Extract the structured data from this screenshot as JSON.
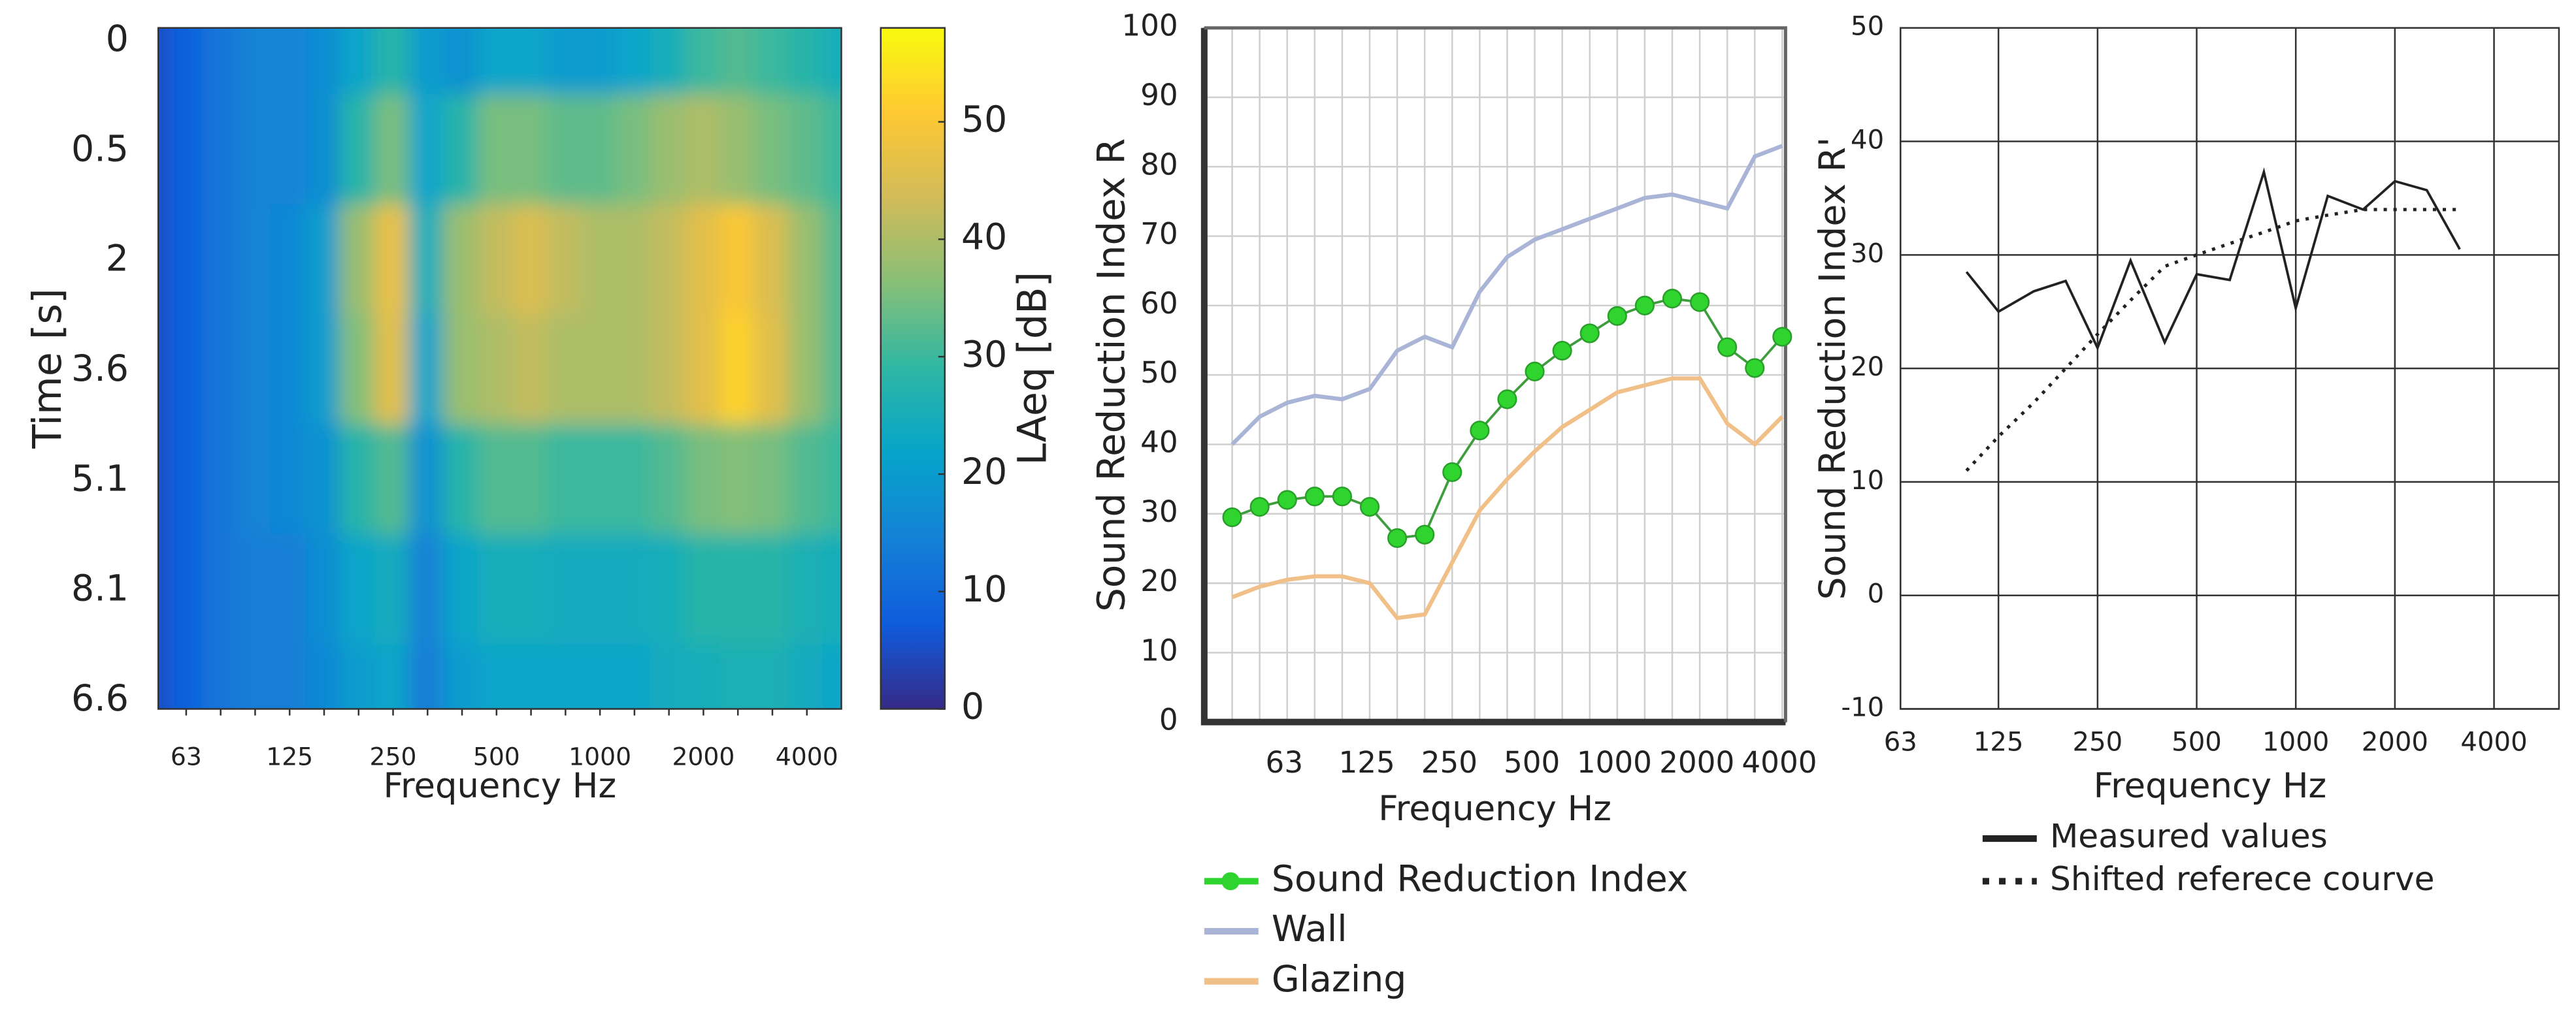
{
  "chart_data": [
    {
      "type": "heatmap",
      "xlabel": "Frequency Hz",
      "ylabel": "Time [s]",
      "colorbar_label": "LAeq [dB]",
      "categories": [
        null,
        "63",
        null,
        null,
        "125",
        null,
        null,
        "250",
        null,
        null,
        "500",
        null,
        null,
        "1000",
        null,
        null,
        "2000",
        null,
        null,
        "4000",
        null
      ],
      "rows": [
        "0",
        "0.5",
        "2",
        "3.6",
        "5.1",
        "8.1",
        "6.6"
      ],
      "values": [
        [
          5,
          8,
          12,
          15,
          15,
          17,
          22,
          28,
          20,
          18,
          22,
          22,
          20,
          20,
          22,
          25,
          30,
          32,
          30,
          28,
          25
        ],
        [
          5,
          8,
          12,
          15,
          15,
          17,
          28,
          35,
          22,
          28,
          35,
          35,
          33,
          33,
          35,
          38,
          40,
          38,
          35,
          33,
          30
        ],
        [
          5,
          8,
          12,
          15,
          16,
          20,
          38,
          47,
          25,
          38,
          42,
          45,
          42,
          40,
          40,
          42,
          46,
          50,
          45,
          38,
          32
        ],
        [
          5,
          8,
          12,
          15,
          16,
          20,
          36,
          46,
          22,
          38,
          40,
          42,
          40,
          40,
          40,
          42,
          46,
          52,
          46,
          38,
          32
        ],
        [
          5,
          8,
          12,
          15,
          16,
          18,
          28,
          32,
          18,
          28,
          32,
          32,
          30,
          30,
          30,
          32,
          35,
          36,
          35,
          32,
          30
        ],
        [
          5,
          8,
          12,
          14,
          14,
          17,
          22,
          24,
          15,
          22,
          25,
          25,
          24,
          24,
          24,
          25,
          28,
          28,
          28,
          26,
          25
        ],
        [
          5,
          8,
          12,
          14,
          14,
          16,
          20,
          22,
          14,
          20,
          22,
          22,
          22,
          22,
          22,
          24,
          25,
          26,
          26,
          24,
          22
        ]
      ],
      "clim": [
        0,
        58
      ],
      "cticks": [
        0,
        10,
        20,
        30,
        40,
        50
      ],
      "colorscale": [
        "#352a87",
        "#0f5cdd",
        "#1481d6",
        "#06a4ca",
        "#2eb7a4",
        "#87bf77",
        "#d1bb59",
        "#fec832",
        "#f9fb0e"
      ]
    },
    {
      "type": "line",
      "xlabel": "Frequency Hz",
      "ylabel": "Sound Reduction Index R",
      "categories": [
        null,
        "63",
        null,
        null,
        "125",
        null,
        null,
        "250",
        null,
        null,
        "500",
        null,
        null,
        "1000",
        null,
        null,
        "2000",
        null,
        null,
        "4000",
        null
      ],
      "ylim": [
        0,
        100
      ],
      "yticks": [
        0,
        10,
        20,
        30,
        40,
        50,
        60,
        70,
        80,
        90,
        100
      ],
      "grid": true,
      "series": [
        {
          "name": "Sound Reduction Index",
          "color": "#2fd42f",
          "markers": true,
          "values": [
            29.5,
            31,
            32,
            32.5,
            32.5,
            31,
            26.5,
            27,
            36,
            42,
            46.5,
            50.5,
            53.5,
            56,
            58.5,
            60,
            61,
            60.5,
            54,
            51,
            55.5
          ]
        },
        {
          "name": "Wall",
          "color": "#a9b4d6",
          "values": [
            40,
            44,
            46,
            47,
            46.5,
            48,
            53.5,
            55.5,
            54,
            62,
            67,
            69.5,
            71,
            72.5,
            74,
            75.5,
            76,
            75,
            74,
            81.5,
            83
          ]
        },
        {
          "name": "Glazing",
          "color": "#f0c088",
          "values": [
            18,
            19.5,
            20.5,
            21,
            21,
            20,
            15,
            15.5,
            23,
            30.5,
            35,
            39,
            42.5,
            45,
            47.5,
            48.5,
            49.5,
            49.5,
            43,
            40,
            44
          ]
        }
      ]
    },
    {
      "type": "line",
      "xlabel": "Frequency Hz",
      "ylabel": "Sound Reduction Index R'",
      "xscale": "log",
      "x": [
        100,
        125,
        160,
        200,
        250,
        315,
        400,
        500,
        630,
        800,
        1000,
        1250,
        1600,
        2000,
        2500,
        3150
      ],
      "xlim": [
        63,
        6300
      ],
      "xticks": [
        63,
        125,
        250,
        500,
        1000,
        2000,
        4000
      ],
      "ylim": [
        -10,
        50
      ],
      "yticks": [
        -10,
        0,
        10,
        20,
        30,
        40,
        50
      ],
      "grid": true,
      "series": [
        {
          "name": "Measured values",
          "color": "#222222",
          "dash": "solid",
          "values": [
            28.5,
            25,
            26.8,
            27.7,
            21.8,
            29.5,
            22.3,
            28.3,
            27.8,
            37.3,
            25.3,
            35.2,
            34,
            36.5,
            35.7,
            30.5
          ]
        },
        {
          "name": "Shifted referece courve",
          "color": "#222222",
          "dash": "dotted",
          "values": [
            11,
            14,
            17,
            20,
            23,
            26,
            29,
            30,
            31,
            32,
            33,
            33.5,
            34,
            34,
            34,
            34
          ]
        }
      ]
    }
  ]
}
